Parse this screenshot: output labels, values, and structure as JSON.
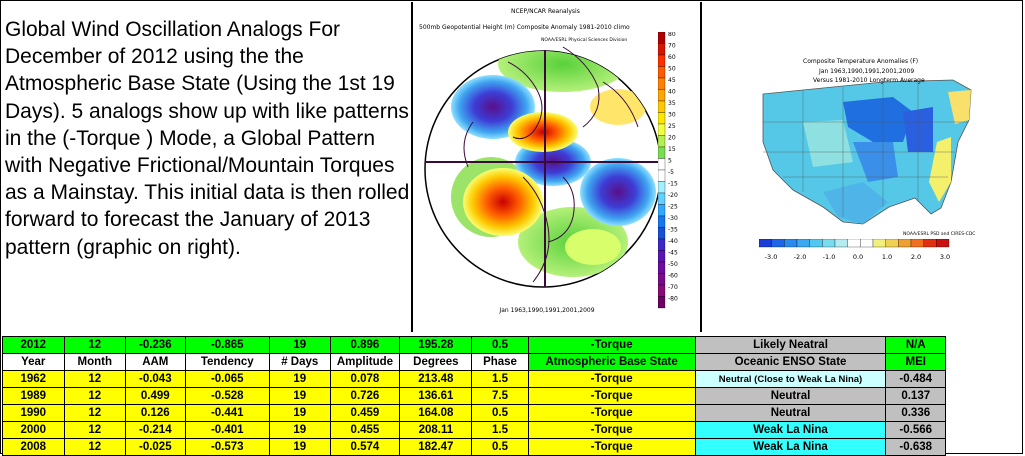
{
  "intro_text": "Global Wind Oscillation Analogs For December of 2012 using the the Atmospheric Base State (Using the 1st 19 Days). 5 analogs show up with like patterns in the (-Torque ) Mode, a Global Pattern with Negative Frictional/Mountain Torques as a Mainstay. This initial data is then rolled forward to forecast the January of 2013 pattern (graphic on right).",
  "map": {
    "title1": "NCEP/NCAR Reanalysis",
    "title2": "500mb Geopotential Height (m) Composite Anomaly 1981-2010 climo",
    "title3": "NOAA/ESRL Physical Sciences Division",
    "footer": "Jan 1963,1990,1991,2001,2009",
    "colorbar_labels": [
      "80",
      "70",
      "60",
      "50",
      "45",
      "40",
      "35",
      "30",
      "25",
      "20",
      "15",
      "5",
      "-5",
      "-15",
      "-20",
      "-25",
      "-30",
      "-35",
      "-40",
      "-45",
      "-50",
      "-60",
      "-70",
      "-80"
    ]
  },
  "temp_map": {
    "title1": "Composite Temperature Anomalies (F)",
    "title2": "Jan 1963,1990,1991,2001,2009",
    "title3": "Versus 1981-2010 Longterm Average",
    "credit": "NOAA/ESRL PSD and CIRES-CDC",
    "colorbar_labels": [
      "-3.0",
      "-2.0",
      "-1.0",
      "0.0",
      "1.0",
      "2.0",
      "3.0"
    ]
  },
  "colors": {
    "green": "#00ff00",
    "yellow": "#ffff00",
    "gray": "#c0c0c0",
    "cyan": "#33ffff",
    "pale_cyan": "#ccffff"
  },
  "chart_data": {
    "type": "table",
    "current_row": [
      "2012",
      "12",
      "-0.236",
      "-0.865",
      "19",
      "0.896",
      "195.28",
      "0.5",
      "-Torque",
      "Likely Neatral",
      "N/A"
    ],
    "columns": [
      "Year",
      "Month",
      "AAM",
      "Tendency",
      "# Days",
      "Amplitude",
      "Degrees",
      "Phase",
      "Atmospheric Base State",
      "Oceanic ENSO State",
      "MEI"
    ],
    "rows": [
      [
        "1962",
        "12",
        "-0.043",
        "-0.065",
        "19",
        "0.078",
        "213.48",
        "1.5",
        "-Torque",
        "Neutral (Close to Weak La Nina)",
        "-0.484"
      ],
      [
        "1989",
        "12",
        "0.499",
        "-0.528",
        "19",
        "0.726",
        "136.61",
        "7.5",
        "-Torque",
        "Neutral",
        "0.137"
      ],
      [
        "1990",
        "12",
        "0.126",
        "-0.441",
        "19",
        "0.459",
        "164.08",
        "0.5",
        "-Torque",
        "Neutral",
        "0.336"
      ],
      [
        "2000",
        "12",
        "-0.214",
        "-0.401",
        "19",
        "0.455",
        "208.11",
        "1.5",
        "-Torque",
        "Weak La Nina",
        "-0.566"
      ],
      [
        "2008",
        "12",
        "-0.025",
        "-0.573",
        "19",
        "0.574",
        "182.47",
        "0.5",
        "-Torque",
        "Weak La Nina",
        "-0.638"
      ]
    ]
  }
}
